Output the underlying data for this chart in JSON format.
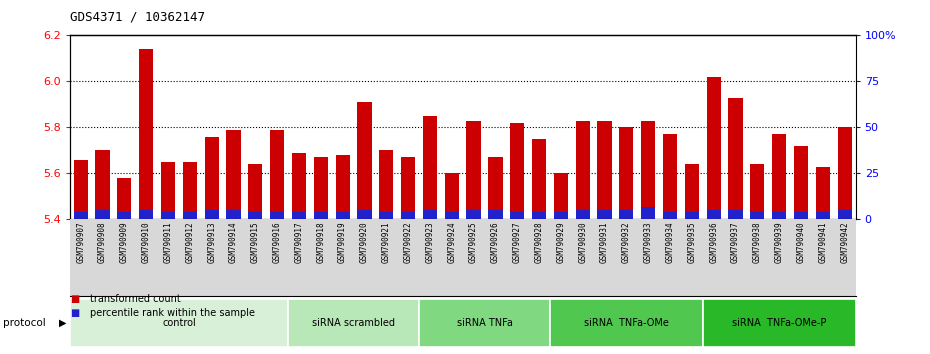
{
  "title": "GDS4371 / 10362147",
  "samples": [
    "GSM790907",
    "GSM790908",
    "GSM790909",
    "GSM790910",
    "GSM790911",
    "GSM790912",
    "GSM790913",
    "GSM790914",
    "GSM790915",
    "GSM790916",
    "GSM790917",
    "GSM790918",
    "GSM790919",
    "GSM790920",
    "GSM790921",
    "GSM790922",
    "GSM790923",
    "GSM790924",
    "GSM790925",
    "GSM790926",
    "GSM790927",
    "GSM790928",
    "GSM790929",
    "GSM790930",
    "GSM790931",
    "GSM790932",
    "GSM790933",
    "GSM790934",
    "GSM790935",
    "GSM790936",
    "GSM790937",
    "GSM790938",
    "GSM790939",
    "GSM790940",
    "GSM790941",
    "GSM790942"
  ],
  "transformed_counts": [
    5.66,
    5.7,
    5.58,
    6.14,
    5.65,
    5.65,
    5.76,
    5.79,
    5.64,
    5.79,
    5.69,
    5.67,
    5.68,
    5.91,
    5.7,
    5.67,
    5.85,
    5.6,
    5.83,
    5.67,
    5.82,
    5.75,
    5.6,
    5.83,
    5.83,
    5.8,
    5.83,
    5.77,
    5.64,
    6.02,
    5.93,
    5.64,
    5.77,
    5.72,
    5.63,
    5.8
  ],
  "percentile_ranks": [
    4,
    5,
    4,
    5,
    4,
    4,
    5,
    5,
    4,
    4,
    4,
    4,
    4,
    5,
    4,
    4,
    5,
    4,
    5,
    5,
    4,
    4,
    4,
    5,
    5,
    5,
    7,
    4,
    4,
    5,
    5,
    4,
    4,
    4,
    4,
    5
  ],
  "ylim_left": [
    5.4,
    6.2
  ],
  "ylim_right": [
    0,
    100
  ],
  "yticks_left": [
    5.4,
    5.6,
    5.8,
    6.0,
    6.2
  ],
  "yticks_right": [
    0,
    25,
    50,
    75,
    100
  ],
  "ytick_labels_right": [
    "0",
    "25",
    "50",
    "75",
    "100%"
  ],
  "groups": [
    {
      "label": "control",
      "start": 0,
      "end": 9,
      "color": "#d8f0d8"
    },
    {
      "label": "siRNA scrambled",
      "start": 10,
      "end": 15,
      "color": "#b8e8b8"
    },
    {
      "label": "siRNA TNFa",
      "start": 16,
      "end": 21,
      "color": "#80d880"
    },
    {
      "label": "siRNA  TNFa-OMe",
      "start": 22,
      "end": 28,
      "color": "#50c850"
    },
    {
      "label": "siRNA  TNFa-OMe-P",
      "start": 29,
      "end": 35,
      "color": "#28b828"
    }
  ],
  "bar_color_red": "#cc0000",
  "bar_color_blue": "#2222cc",
  "bar_bottom": 5.4,
  "legend_red": "transformed count",
  "legend_blue": "percentile rank within the sample",
  "protocol_label": "protocol",
  "bg_color": "#d8d8d8"
}
